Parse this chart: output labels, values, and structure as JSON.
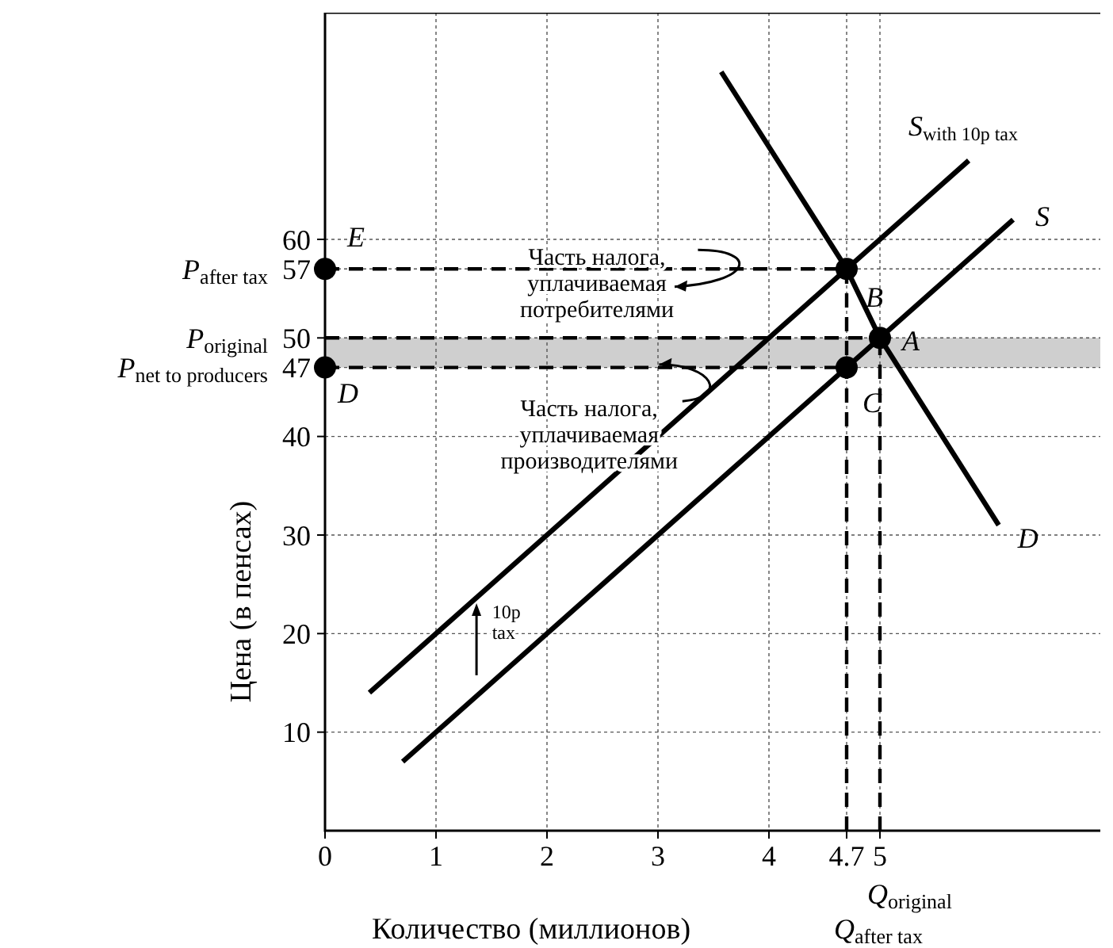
{
  "chart_data": {
    "type": "line",
    "xlabel": "Количество (миллионов)",
    "ylabel": "Цена (в пенсах)",
    "xlim": [
      0,
      7
    ],
    "ylim": [
      0,
      83
    ],
    "xticks": [
      0,
      1,
      2,
      3,
      4,
      4.7,
      5
    ],
    "yticks": [
      10,
      20,
      30,
      40,
      47,
      50,
      57,
      60
    ],
    "grid": true,
    "legend": false,
    "line_style": "solid",
    "marker": "none",
    "bands": [
      {
        "axis": "y",
        "from": 47,
        "to": 50,
        "color": "#cfcfcf"
      }
    ],
    "series": [
      {
        "name": "S$_{with 10p tax}$",
        "color": "#000000",
        "x": [
          0.4,
          5.8
        ],
        "values": [
          14,
          68
        ]
      },
      {
        "name": "S",
        "color": "#000000",
        "x": [
          0.7,
          6.2
        ],
        "values": [
          7,
          62
        ]
      },
      {
        "name": "D",
        "color": "#000000",
        "x": [
          3.57,
          4.7,
          5,
          6.07
        ],
        "values": [
          77,
          57,
          50,
          31
        ]
      },
      {
        "color": "#000000",
        "x": [
          0,
          4.7
        ],
        "values": [
          57,
          57
        ],
        "line_style": "dashed"
      },
      {
        "color": "#000000",
        "x": [
          0,
          5
        ],
        "values": [
          50,
          50
        ],
        "line_style": "dashed"
      },
      {
        "color": "#000000",
        "x": [
          0,
          4.7
        ],
        "values": [
          47,
          47
        ],
        "line_style": "dashed"
      },
      {
        "color": "#000000",
        "x": [
          4.7,
          4.7
        ],
        "values": [
          0,
          57
        ],
        "line_style": "dashed"
      },
      {
        "color": "#000000",
        "x": [
          5,
          5
        ],
        "values": [
          0,
          50
        ],
        "line_style": "dashed"
      },
      {
        "type": "scatter",
        "color": "#000000",
        "marker": "circle",
        "x": [
          0,
          0,
          4.7,
          5,
          4.7
        ],
        "values": [
          57,
          47,
          57,
          50,
          47
        ]
      }
    ],
    "annotations": [
      "Часть налога,\nуплачиваемая\nпотребителями",
      "Часть налога,\nуплачиваемая\nпроизводителями",
      "10p\ntax",
      {
        "text": "E",
        "x": 0,
        "y": 57
      },
      {
        "text": "D",
        "x": 0,
        "y": 47
      },
      {
        "text": "B",
        "x": 4.7,
        "y": 57
      },
      {
        "text": "A",
        "x": 5,
        "y": 50
      },
      {
        "text": "C",
        "x": 4.7,
        "y": 47
      },
      "P$_{after tax}$",
      "P$_{original}$",
      "P$_{net to producers}$",
      "Q$_{original}$",
      "Q$_{after tax}$"
    ]
  }
}
